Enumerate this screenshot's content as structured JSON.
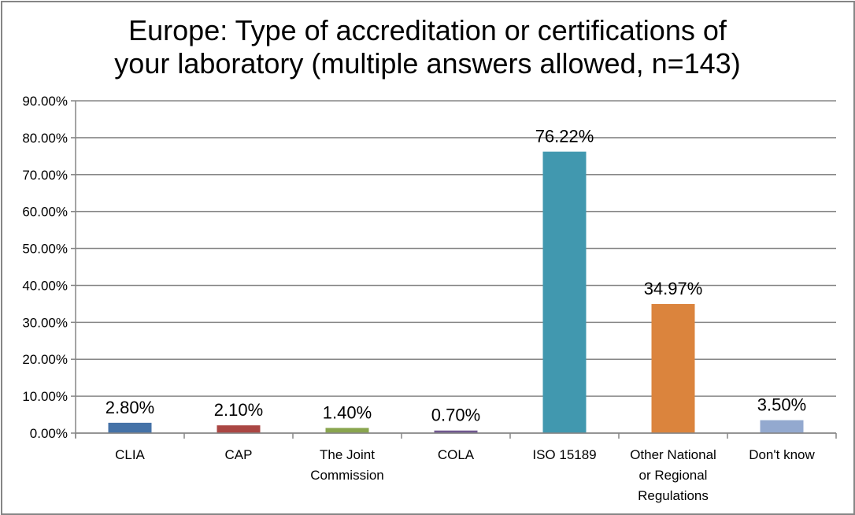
{
  "chart_data": {
    "type": "bar",
    "title": "Europe: Type of accreditation or certifications of your laboratory (multiple answers allowed, n=143)",
    "title_lines": [
      "Europe: Type of accreditation or certifications of",
      "your laboratory (multiple answers allowed, n=143)"
    ],
    "categories": [
      "CLIA",
      "CAP",
      "The Joint Commission",
      "COLA",
      "ISO 15189",
      "Other National or Regional Regulations",
      "Don't know"
    ],
    "category_lines": [
      [
        "CLIA"
      ],
      [
        "CAP"
      ],
      [
        "The Joint",
        "Commission"
      ],
      [
        "COLA"
      ],
      [
        "ISO 15189"
      ],
      [
        "Other National",
        "or Regional",
        "Regulations"
      ],
      [
        "Don't know"
      ]
    ],
    "values": [
      2.8,
      2.1,
      1.4,
      0.7,
      76.22,
      34.97,
      3.5
    ],
    "data_labels": [
      "2.80%",
      "2.10%",
      "1.40%",
      "0.70%",
      "76.22%",
      "34.97%",
      "3.50%"
    ],
    "colors": [
      "#4572A7",
      "#AA4643",
      "#89A54E",
      "#71588F",
      "#4198AF",
      "#DB843D",
      "#93A9CF"
    ],
    "ylim": [
      0,
      90
    ],
    "yticks": [
      0,
      10,
      20,
      30,
      40,
      50,
      60,
      70,
      80,
      90
    ],
    "ytick_labels": [
      "0.00%",
      "10.00%",
      "20.00%",
      "30.00%",
      "40.00%",
      "50.00%",
      "60.00%",
      "70.00%",
      "80.00%",
      "90.00%"
    ],
    "xlabel": "",
    "ylabel": "",
    "grid": true,
    "legend": "none"
  }
}
